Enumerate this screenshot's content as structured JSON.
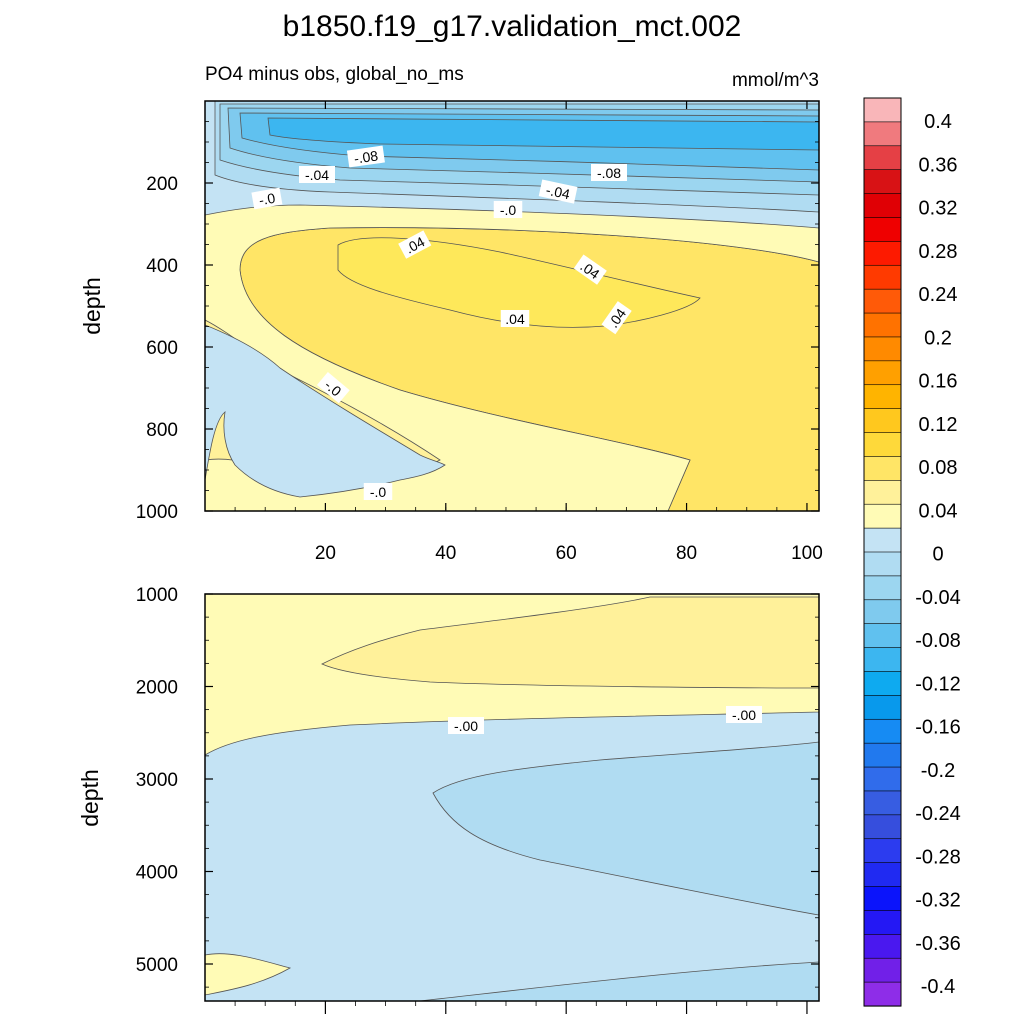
{
  "figure": {
    "title": "b1850.f19_g17.validation_mct.002",
    "subtitle_left": "PO4 minus obs, global_no_ms",
    "subtitle_right": "mmol/m^3"
  },
  "chart_data": [
    {
      "type": "heatmap",
      "panel": "upper",
      "ylabel": "depth",
      "xlabel": "",
      "xlim": [
        0,
        102
      ],
      "ylim": [
        1000,
        0
      ],
      "x_ticks": [
        "20",
        "40",
        "60",
        "80",
        "100"
      ],
      "y_ticks": [
        "200",
        "400",
        "600",
        "800",
        "1000"
      ],
      "contour_labels": [
        "-.08",
        "-.04",
        "-.0",
        "-.08",
        "-.04",
        "-.0",
        ".04",
        ".04",
        ".04",
        ".04",
        "-.0",
        "-.0"
      ],
      "regions": [
        {
          "x": [
            2,
            102
          ],
          "y": [
            0,
            200
          ],
          "value": -0.07
        },
        {
          "x": [
            2,
            102
          ],
          "y": [
            200,
            550
          ],
          "value": 0.03
        },
        {
          "x": [
            20,
            80
          ],
          "y": [
            330,
            550
          ],
          "value": 0.045
        },
        {
          "x": [
            2,
            42
          ],
          "y": [
            620,
            990
          ],
          "value": -0.02
        },
        {
          "x": [
            2,
            102
          ],
          "y": [
            550,
            1000
          ],
          "value": 0.02
        }
      ]
    },
    {
      "type": "heatmap",
      "panel": "lower",
      "ylabel": "depth",
      "xlabel": "",
      "xlim": [
        0,
        102
      ],
      "ylim": [
        5400,
        1000
      ],
      "x_ticks": [],
      "y_ticks": [
        "1000",
        "2000",
        "3000",
        "4000",
        "5000"
      ],
      "contour_labels": [
        "-.00",
        "-.00"
      ],
      "regions": [
        {
          "x": [
            2,
            102
          ],
          "y": [
            1000,
            2400
          ],
          "value": 0.01
        },
        {
          "x": [
            20,
            102
          ],
          "y": [
            1300,
            2000
          ],
          "value": 0.03
        },
        {
          "x": [
            2,
            102
          ],
          "y": [
            2400,
            5400
          ],
          "value": -0.01
        },
        {
          "x": [
            40,
            102
          ],
          "y": [
            2600,
            4500
          ],
          "value": -0.03
        }
      ]
    }
  ],
  "colorbar": {
    "labels": [
      "0.4",
      "0.36",
      "0.32",
      "0.28",
      "0.24",
      "0.2",
      "0.16",
      "0.12",
      "0.08",
      "0.04",
      "0",
      "-0.04",
      "-0.08",
      "-0.12",
      "-0.16",
      "-0.2",
      "-0.24",
      "-0.28",
      "-0.32",
      "-0.36",
      "-0.4"
    ],
    "colors_top_to_bottom": [
      "#f9b6b9",
      "#f07a7e",
      "#e54045",
      "#d81215",
      "#e00005",
      "#ef0000",
      "#fd1a00",
      "#ff3a00",
      "#ff5a08",
      "#ff7200",
      "#ff8a00",
      "#ffa000",
      "#ffb400",
      "#ffc81e",
      "#fed93a",
      "#ffe566",
      "#fff19a",
      "#fffbb6",
      "#c4e3f4",
      "#b0dcf2",
      "#9cd6f0",
      "#7fcaee",
      "#60c1ef",
      "#3cb6f0",
      "#0eaaf0",
      "#0899ec",
      "#168bf3",
      "#2179ee",
      "#306ceb",
      "#375de2",
      "#364edd",
      "#2c3cef",
      "#202af2",
      "#0b14fb",
      "#2418f4",
      "#4a18ef",
      "#7120e8",
      "#8e2de8"
    ]
  }
}
